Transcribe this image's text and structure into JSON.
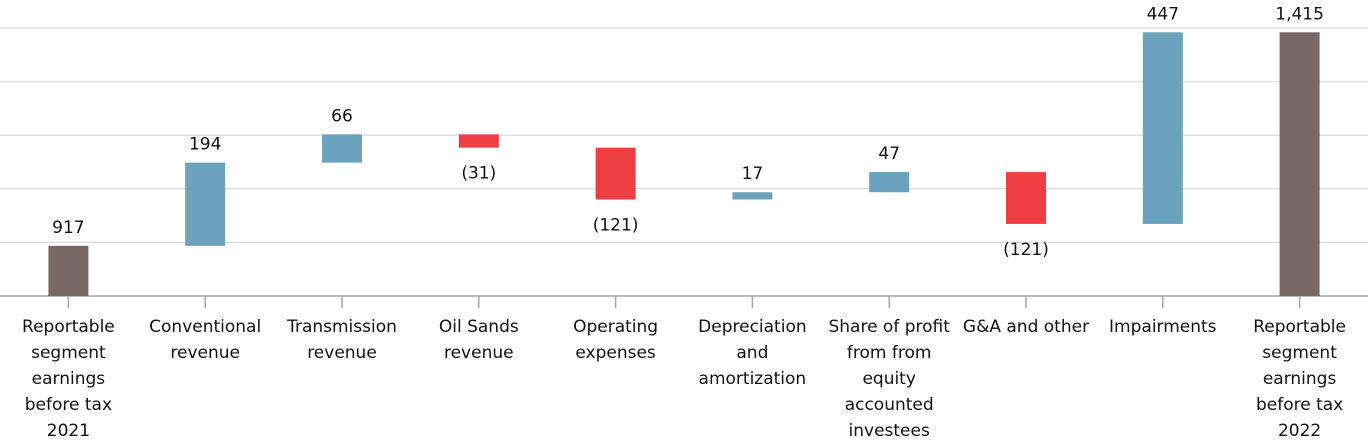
{
  "chart_data": {
    "type": "waterfall",
    "categories": [
      "Reportable segment earnings before tax 2021",
      "Conventional revenue",
      "Transmission revenue",
      "Oil Sands revenue",
      "Operating expenses",
      "Depreciation and amortization",
      "Share of profit from from equity accounted investees",
      "G&A and other",
      "Impairments",
      "Reportable segment earnings before tax 2022"
    ],
    "values": [
      917,
      194,
      66,
      -31,
      -121,
      17,
      47,
      -121,
      447,
      1415
    ],
    "value_labels": [
      "917",
      "194",
      "66",
      "(31)",
      "(121)",
      "17",
      "47",
      "(121)",
      "447",
      "1,415"
    ],
    "measure": [
      "absolute",
      "relative",
      "relative",
      "relative",
      "relative",
      "relative",
      "relative",
      "relative",
      "relative",
      "total"
    ],
    "colors": {
      "total": "#776864",
      "increase": "#6ba3bd",
      "decrease": "#ee3e44"
    },
    "ylim": [
      800,
      1425
    ],
    "yticks": [
      800,
      925,
      1050,
      1175,
      1300,
      1425
    ],
    "grid": true
  }
}
